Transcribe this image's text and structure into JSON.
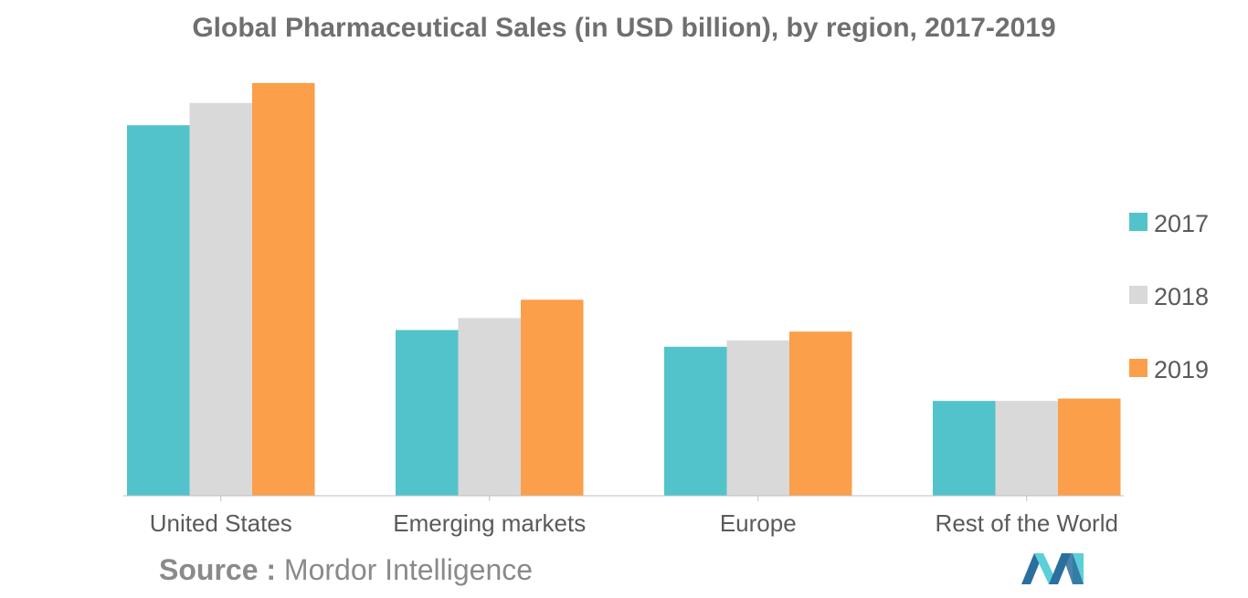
{
  "chart_data": {
    "type": "bar",
    "title": "Global Pharmaceutical Sales (in USD billion), by region, 2017-2019",
    "xlabel": "",
    "ylabel": "",
    "categories": [
      "United States",
      "Emerging markets",
      "Europe",
      "Rest of the World"
    ],
    "series": [
      {
        "name": "2017",
        "color": "#52c3cb",
        "values": [
          465,
          208,
          187,
          119
        ]
      },
      {
        "name": "2018",
        "color": "#d9d9d9",
        "values": [
          493,
          223,
          195,
          119
        ]
      },
      {
        "name": "2019",
        "color": "#fb9f4a",
        "values": [
          518,
          246,
          206,
          122
        ]
      }
    ],
    "ylim": [
      0,
      550
    ],
    "grid": false,
    "legend_position": "right"
  },
  "source": {
    "label": "Source :",
    "text": "Mordor Intelligence"
  },
  "logo": {
    "icon": "mordor-intelligence-logo-icon",
    "colors": [
      "#2a6f9e",
      "#5ccfd8"
    ]
  }
}
